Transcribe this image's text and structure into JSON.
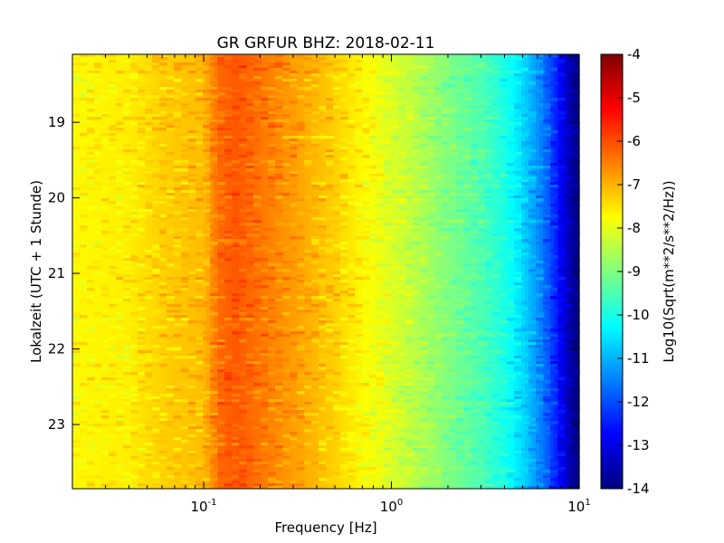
{
  "chart_data": {
    "type": "heatmap",
    "title": "GR GRFUR BHZ: 2018-02-11",
    "xlabel": "Frequency [Hz]",
    "ylabel": "Lokalzeit (UTC + 1 Stunde)",
    "x_scale": "log",
    "xlim": [
      0.02,
      10
    ],
    "ylim": [
      23.85,
      18.1
    ],
    "x_ticks": [
      {
        "value": 0.1,
        "base": "10",
        "exp": "-1"
      },
      {
        "value": 1,
        "base": "10",
        "exp": "0"
      },
      {
        "value": 10,
        "base": "10",
        "exp": "1"
      }
    ],
    "y_ticks": [
      {
        "value": 19,
        "label": "19"
      },
      {
        "value": 20,
        "label": "20"
      },
      {
        "value": 21,
        "label": "21"
      },
      {
        "value": 22,
        "label": "22"
      },
      {
        "value": 23,
        "label": "23"
      }
    ],
    "colorbar": {
      "label": "Log10(Sqrt(m**2/s**2/Hz))",
      "colormap": "jet",
      "range": [
        -14,
        -4
      ],
      "ticks": [
        "-4",
        "-5",
        "-6",
        "-7",
        "-8",
        "-9",
        "-10",
        "-11",
        "-12",
        "-13",
        "-14"
      ]
    },
    "spectrum_profile": {
      "frequency_hz": [
        0.02,
        0.04,
        0.06,
        0.1,
        0.12,
        0.15,
        0.2,
        0.3,
        0.5,
        0.7,
        1.0,
        1.3,
        2.0,
        3.0,
        4.0,
        5.0,
        6.0,
        7.0,
        8.0,
        9.0,
        10.0
      ],
      "log10_amplitude": [
        -7.7,
        -7.6,
        -7.3,
        -7.1,
        -6.3,
        -6.1,
        -6.4,
        -6.8,
        -7.3,
        -7.7,
        -8.1,
        -8.4,
        -9.0,
        -9.5,
        -10.0,
        -10.6,
        -11.3,
        -12.0,
        -12.8,
        -13.6,
        -14.0
      ]
    },
    "grid": false,
    "legend": "colorbar-right"
  }
}
